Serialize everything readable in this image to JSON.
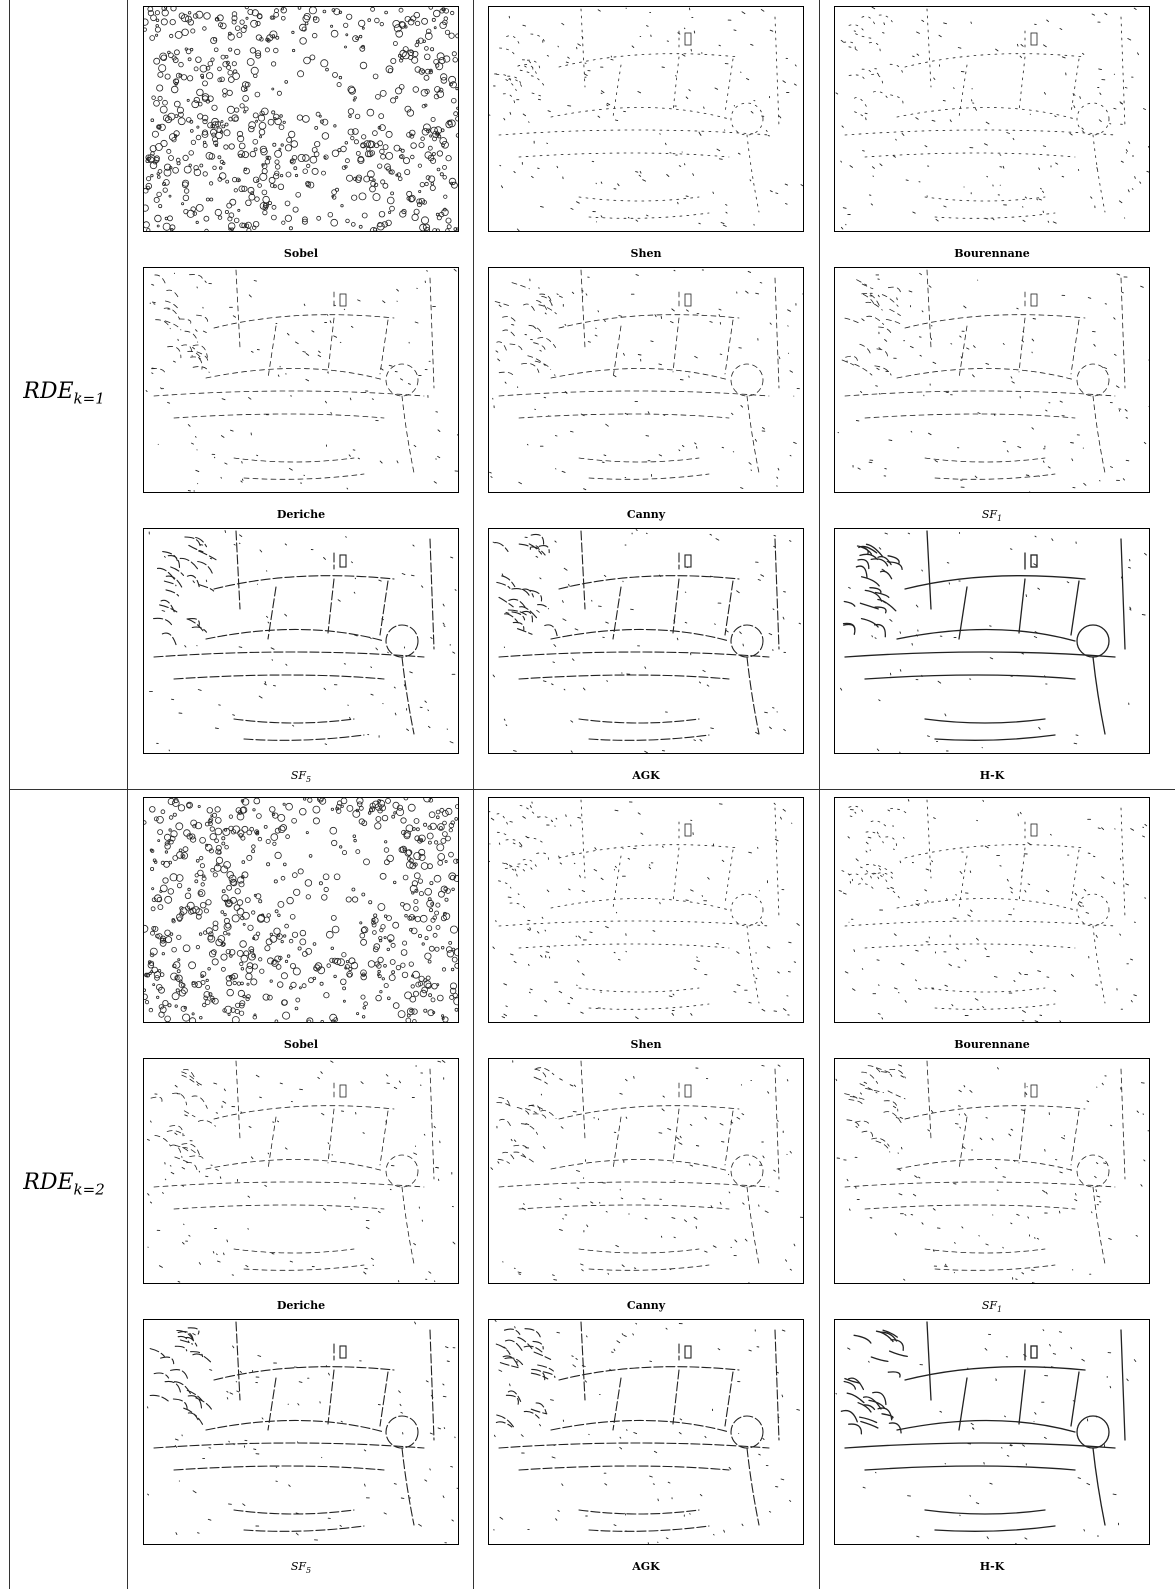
{
  "rows": [
    {
      "label_base": "RDE",
      "label_sub": "k=1",
      "panels": [
        {
          "caption": "Sobel",
          "density": "dense"
        },
        {
          "caption": "Shen",
          "density": "light"
        },
        {
          "caption": "Bourennane",
          "density": "light"
        },
        {
          "caption": "Deriche",
          "density": "medium"
        },
        {
          "caption": "Canny",
          "density": "medium"
        },
        {
          "caption_base": "SF",
          "caption_sub": "1",
          "density": "medium"
        },
        {
          "caption_base": "SF",
          "caption_sub": "5",
          "density": "strong"
        },
        {
          "caption": "AGK",
          "density": "strong"
        },
        {
          "caption": "H-K",
          "density": "bold"
        }
      ]
    },
    {
      "label_base": "RDE",
      "label_sub": "k=2",
      "panels": [
        {
          "caption": "Sobel",
          "density": "dense"
        },
        {
          "caption": "Shen",
          "density": "light"
        },
        {
          "caption": "Bourennane",
          "density": "light"
        },
        {
          "caption": "Deriche",
          "density": "medium"
        },
        {
          "caption": "Canny",
          "density": "medium"
        },
        {
          "caption_base": "SF",
          "caption_sub": "1",
          "density": "medium"
        },
        {
          "caption_base": "SF",
          "caption_sub": "5",
          "density": "strong"
        },
        {
          "caption": "AGK",
          "density": "strong"
        },
        {
          "caption": "H-K",
          "density": "bold"
        }
      ]
    }
  ]
}
